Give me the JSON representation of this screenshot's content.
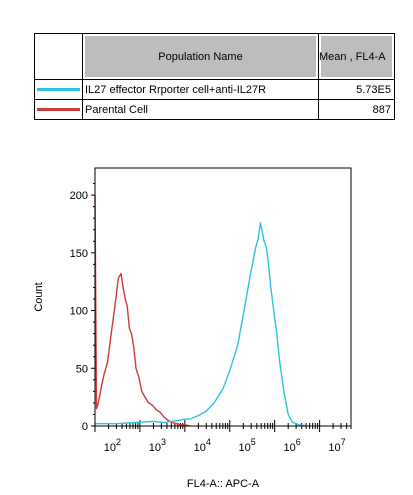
{
  "legend": {
    "header_name": "Population Name",
    "header_mean": "Mean , FL4-A",
    "rows": [
      {
        "name": "IL27 effector Rrporter cell+anti-IL27R",
        "mean": "5.73E5",
        "color": "#2ec4df"
      },
      {
        "name": "Parental Cell",
        "mean": "887",
        "color": "#d03a3a"
      }
    ]
  },
  "chart_data": {
    "type": "line",
    "title": "",
    "xlabel": "FL4-A:: APC-A",
    "ylabel": "Count",
    "x_scale": "log",
    "xlim": [
      100,
      50000000
    ],
    "ylim": [
      0,
      220
    ],
    "y_ticks": [
      0,
      50,
      100,
      150,
      200
    ],
    "x_tick_labels": [
      {
        "base": "10",
        "exp": "2",
        "value": 300
      },
      {
        "base": "10",
        "exp": "3",
        "value": 3000
      },
      {
        "base": "10",
        "exp": "4",
        "value": 30000
      },
      {
        "base": "10",
        "exp": "5",
        "value": 300000
      },
      {
        "base": "10",
        "exp": "6",
        "value": 3000000
      },
      {
        "base": "10",
        "exp": "7",
        "value": 30000000
      }
    ],
    "series": [
      {
        "name": "Parental Cell",
        "color": "#d03a3a",
        "x": [
          100,
          108,
          115,
          125,
          140,
          160,
          190,
          230,
          280,
          330,
          380,
          430,
          470,
          520,
          580,
          650,
          730,
          820,
          950,
          1100,
          1300,
          1550,
          1900,
          2300,
          2800,
          3400,
          4200,
          5200,
          6500,
          8000,
          10000,
          13000
        ],
        "y": [
          200,
          15,
          18,
          25,
          35,
          45,
          55,
          80,
          105,
          128,
          132,
          118,
          110,
          104,
          85,
          80,
          68,
          50,
          42,
          30,
          25,
          20,
          18,
          14,
          12,
          8,
          5,
          3,
          2,
          1,
          1,
          0
        ]
      },
      {
        "name": "IL27 effector Rrporter cell+anti-IL27R",
        "color": "#2ec4df",
        "x": [
          100,
          150,
          300,
          800,
          2000,
          3500,
          5000,
          8000,
          10000,
          13000,
          20000,
          30000,
          45000,
          70000,
          100000,
          150000,
          220000,
          300000,
          380000,
          430000,
          480000,
          530000,
          580000,
          650000,
          730000,
          820000,
          950000,
          1100000,
          1300000,
          1600000,
          2000000,
          2500000,
          3500000,
          5000000
        ],
        "y": [
          2,
          2,
          2,
          3,
          4,
          3,
          4,
          5,
          6,
          6,
          9,
          13,
          20,
          32,
          48,
          70,
          105,
          135,
          155,
          162,
          176,
          168,
          160,
          155,
          140,
          120,
          100,
          82,
          55,
          30,
          10,
          3,
          1,
          0
        ]
      }
    ],
    "grid": false,
    "legend_position": "top"
  }
}
